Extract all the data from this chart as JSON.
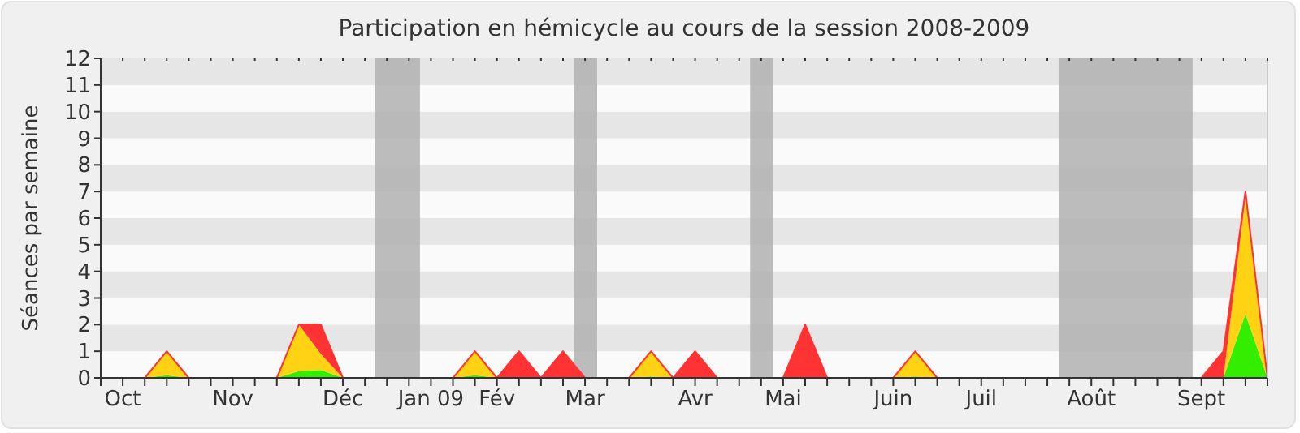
{
  "chart_data": {
    "type": "area",
    "stacked": true,
    "title": "Participation en hémicycle au cours de la session 2008-2009",
    "ylabel": "Séances par semaine",
    "categories": [
      null,
      "Oct",
      null,
      null,
      null,
      null,
      "Nov",
      null,
      null,
      null,
      null,
      "Déc",
      null,
      null,
      null,
      "Jan 09",
      null,
      null,
      "Fév",
      null,
      null,
      null,
      "Mar",
      null,
      null,
      null,
      null,
      "Avr",
      null,
      null,
      null,
      "Mai",
      null,
      null,
      null,
      null,
      "Juin",
      null,
      null,
      null,
      "Juil",
      null,
      null,
      null,
      null,
      "Août",
      null,
      null,
      null,
      null,
      "Sept",
      null,
      null,
      null
    ],
    "ylim": [
      0,
      12
    ],
    "yticks": [
      0,
      1,
      2,
      3,
      4,
      5,
      6,
      7,
      8,
      9,
      10,
      11,
      12
    ],
    "series": [
      {
        "color": "#33ee00",
        "values": [
          0,
          0,
          0,
          0.1,
          0,
          0,
          0,
          0,
          0,
          0.25,
          0.3,
          0,
          0,
          0,
          0,
          0,
          0,
          0.1,
          0,
          0,
          0,
          0,
          0,
          0,
          0,
          0.05,
          0,
          0,
          0,
          0,
          0,
          0,
          0,
          0,
          0,
          0,
          0,
          0.05,
          0,
          0,
          0,
          0,
          0,
          0,
          0,
          0,
          0,
          0,
          0,
          0,
          0,
          0,
          2.4,
          0
        ]
      },
      {
        "color": "#ffd214",
        "values": [
          0,
          0,
          0,
          0.9,
          0,
          0,
          0,
          0,
          0,
          1.75,
          0.6,
          0,
          0,
          0,
          0,
          0,
          0,
          0.9,
          0,
          0,
          0,
          0,
          0,
          0,
          0,
          0.95,
          0,
          0,
          0,
          0,
          0,
          0,
          0,
          0,
          0,
          0,
          0,
          0.95,
          0,
          0,
          0,
          0,
          0,
          0,
          0,
          0,
          0,
          0,
          0,
          0,
          0,
          0,
          4.4,
          0
        ]
      },
      {
        "color": "#ff3333",
        "values": [
          0,
          0,
          0,
          0,
          0,
          0,
          0,
          0,
          0,
          0,
          1.1,
          0,
          0,
          0,
          0,
          0,
          0,
          0,
          0,
          1,
          0,
          1,
          0,
          0,
          0,
          0,
          0,
          1,
          0,
          0,
          0,
          0,
          2,
          0,
          0,
          0,
          0,
          0,
          0,
          0,
          0,
          0,
          0,
          0,
          0,
          0,
          0,
          0,
          0,
          0,
          0,
          1,
          0.2,
          0
        ]
      }
    ]
  }
}
